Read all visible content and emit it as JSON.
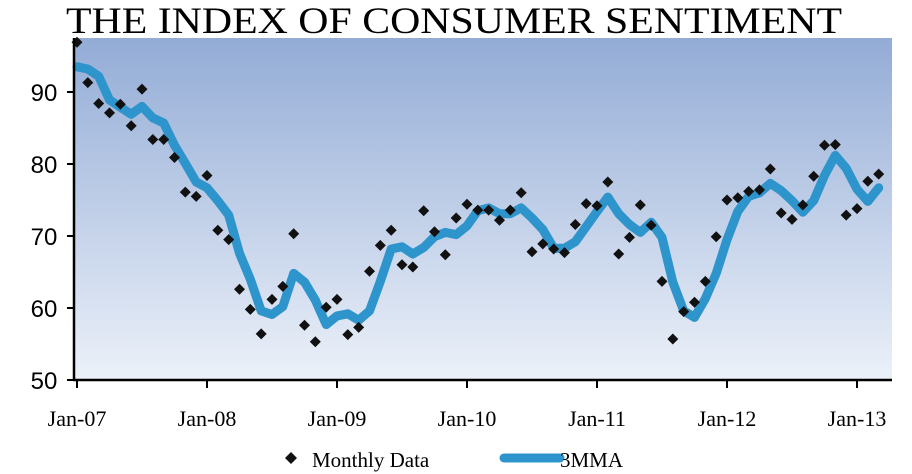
{
  "chart_data": {
    "type": "line",
    "title": "THE INDEX OF CONSUMER SENTIMENT",
    "xlabel": "",
    "ylabel": "",
    "ylim": [
      50,
      97.5
    ],
    "y_ticks": [
      "50",
      "60",
      "70",
      "80",
      "90"
    ],
    "x_tick_labels": [
      "Jan-07",
      "Jan-08",
      "Jan-09",
      "Jan-10",
      "Jan-11",
      "Jan-12",
      "Jan-13"
    ],
    "x_start": "Jan-07",
    "frequency": "monthly",
    "grid": false,
    "legend_position": "bottom",
    "colors": {
      "plot_gradient_top": "#93acd6",
      "plot_gradient_bottom": "#ecf1f9",
      "line": "#2e94cc",
      "marker": "#111111"
    },
    "series": [
      {
        "name": "Monthly Data",
        "style": "diamond-markers",
        "values": [
          96.9,
          91.3,
          88.4,
          87.1,
          88.3,
          85.3,
          90.4,
          83.4,
          83.4,
          80.9,
          76.1,
          75.5,
          78.4,
          70.8,
          69.5,
          62.6,
          59.8,
          56.4,
          61.2,
          63.0,
          70.3,
          57.6,
          55.3,
          60.1,
          61.2,
          56.3,
          57.3,
          65.1,
          68.7,
          70.8,
          66.0,
          65.7,
          73.5,
          70.6,
          67.4,
          72.5,
          74.4,
          73.6,
          73.6,
          72.2,
          73.6,
          76.0,
          67.8,
          68.9,
          68.2,
          67.7,
          71.6,
          74.5,
          74.2,
          77.5,
          67.5,
          69.8,
          74.3,
          71.5,
          63.7,
          55.7,
          59.5,
          60.8,
          63.7,
          69.9,
          75.0,
          75.3,
          76.2,
          76.4,
          79.3,
          73.2,
          72.3,
          74.3,
          78.3,
          82.6,
          82.7,
          72.9,
          73.8,
          77.6,
          78.6
        ]
      },
      {
        "name": "3MMA",
        "style": "thick-line",
        "values": [
          93.5,
          93.2,
          92.2,
          88.9,
          87.9,
          86.9,
          88.0,
          86.4,
          85.7,
          82.6,
          80.1,
          77.5,
          76.7,
          74.9,
          72.9,
          67.6,
          64.0,
          59.6,
          59.1,
          60.2,
          64.8,
          63.6,
          61.1,
          57.7,
          58.9,
          59.2,
          58.3,
          59.6,
          63.7,
          68.2,
          68.5,
          67.5,
          68.4,
          69.9,
          70.5,
          70.2,
          71.4,
          73.5,
          73.9,
          73.1,
          73.1,
          73.9,
          72.5,
          70.9,
          68.3,
          68.3,
          69.2,
          71.3,
          73.4,
          75.4,
          73.1,
          71.6,
          70.5,
          71.9,
          69.8,
          63.6,
          59.6,
          58.7,
          61.3,
          64.8,
          69.5,
          73.4,
          75.5,
          76.0,
          77.3,
          76.3,
          74.9,
          73.3,
          74.9,
          78.4,
          81.2,
          79.4,
          76.5,
          74.8,
          76.7
        ]
      }
    ]
  }
}
